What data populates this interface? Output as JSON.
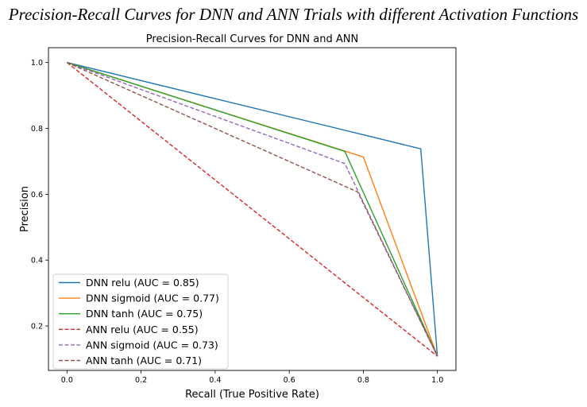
{
  "caption": "Precision-Recall Curves for DNN and ANN Trials with different Activation Functions",
  "chart_data": {
    "type": "line",
    "title": "Precision-Recall Curves for DNN and ANN",
    "xlabel": "Recall (True Positive Rate)",
    "ylabel": "Precision",
    "xlim": [
      -0.05,
      1.05
    ],
    "ylim": [
      0.065,
      1.045
    ],
    "xticks": [
      0.0,
      0.2,
      0.4,
      0.6,
      0.8,
      1.0
    ],
    "yticks": [
      0.2,
      0.4,
      0.6,
      0.8,
      1.0
    ],
    "xtick_labels": [
      "0.0",
      "0.2",
      "0.4",
      "0.6",
      "0.8",
      "1.0"
    ],
    "ytick_labels": [
      "0.2",
      "0.4",
      "0.6",
      "0.8",
      "1.0"
    ],
    "grid": false,
    "legend_position": "lower-left",
    "series": [
      {
        "name": "DNN relu (AUC = 0.85)",
        "color": "#1f77b4",
        "dash": "solid",
        "x": [
          0.0,
          0.955,
          1.0
        ],
        "y": [
          1.0,
          0.738,
          0.108
        ]
      },
      {
        "name": "DNN sigmoid (AUC = 0.77)",
        "color": "#ff7f0e",
        "dash": "solid",
        "x": [
          0.0,
          0.8,
          1.0
        ],
        "y": [
          1.0,
          0.713,
          0.108
        ]
      },
      {
        "name": "DNN tanh (AUC = 0.75)",
        "color": "#2ca02c",
        "dash": "solid",
        "x": [
          0.0,
          0.75,
          1.0
        ],
        "y": [
          1.0,
          0.73,
          0.108
        ]
      },
      {
        "name": "ANN relu (AUC = 0.55)",
        "color": "#d62728",
        "dash": "dashed",
        "x": [
          0.0,
          1.0
        ],
        "y": [
          1.0,
          0.108
        ]
      },
      {
        "name": "ANN sigmoid (AUC = 0.73)",
        "color": "#9467bd",
        "dash": "dashed",
        "x": [
          0.0,
          0.75,
          1.0
        ],
        "y": [
          1.0,
          0.693,
          0.108
        ]
      },
      {
        "name": "ANN tanh (AUC = 0.71)",
        "color": "#8c564b",
        "dash": "dashed",
        "x": [
          0.0,
          0.785,
          1.0
        ],
        "y": [
          1.0,
          0.607,
          0.108
        ]
      }
    ]
  }
}
